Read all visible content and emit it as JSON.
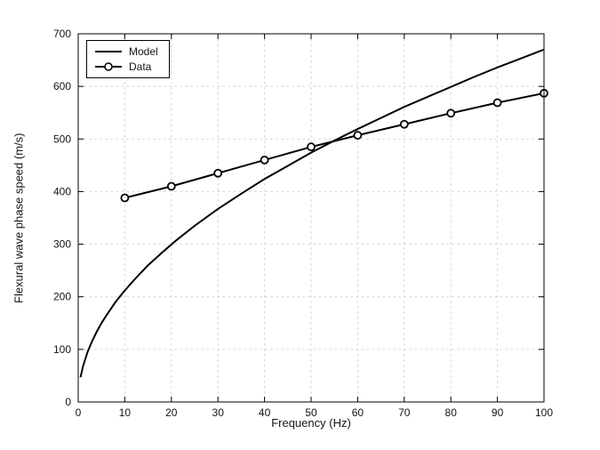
{
  "chart_data": {
    "type": "line",
    "title": "",
    "xlabel": "Frequency (Hz)",
    "ylabel": "Flexural wave phase speed (m/s)",
    "xlim": [
      0,
      100
    ],
    "ylim": [
      0,
      700
    ],
    "xticks": [
      0,
      10,
      20,
      30,
      40,
      50,
      60,
      70,
      80,
      90,
      100
    ],
    "yticks": [
      0,
      100,
      200,
      300,
      400,
      500,
      600,
      700
    ],
    "grid": true,
    "grid_style": "dashed",
    "grid_color": "#d9d9d9",
    "axis_color": "#000000",
    "legend_position": "top-left",
    "series": [
      {
        "name": "Model",
        "type": "line",
        "marker": "none",
        "color": "#000000",
        "x": [
          0.5,
          1,
          2,
          3,
          4,
          5,
          6,
          8,
          10,
          12,
          15,
          18,
          21,
          25,
          30,
          35,
          40,
          45,
          50,
          55,
          60,
          65,
          70,
          75,
          80,
          85,
          90,
          95,
          100
        ],
        "y": [
          47,
          67,
          95,
          116,
          134,
          150,
          164,
          190,
          212,
          232,
          260,
          284,
          307,
          335,
          367,
          396,
          424,
          449,
          474,
          497,
          519,
          540,
          561,
          580,
          599,
          618,
          636,
          653,
          670
        ]
      },
      {
        "name": "Data",
        "type": "line",
        "marker": "circle",
        "color": "#000000",
        "marker_fill": "#ffffff",
        "x": [
          10,
          20,
          30,
          40,
          50,
          60,
          70,
          80,
          90,
          100
        ],
        "y": [
          388,
          410,
          435,
          460,
          485,
          507,
          528,
          549,
          569,
          587
        ]
      }
    ]
  }
}
